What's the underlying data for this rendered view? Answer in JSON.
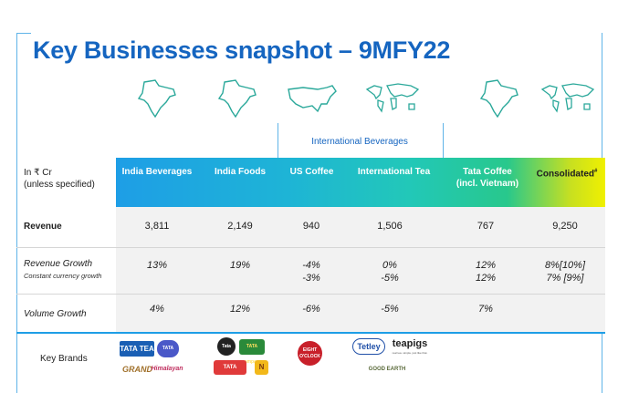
{
  "title": "Key Businesses snapshot – 9MFY22",
  "international_label": "International  Beverages",
  "units": {
    "line1": "In ₹ Cr",
    "line2": "(unless specified)"
  },
  "columns": [
    {
      "label": "India Beverages"
    },
    {
      "label": "India Foods"
    },
    {
      "label": "US Coffee"
    },
    {
      "label": "International Tea"
    },
    {
      "label": "Tata Coffee (incl. Vietnam)",
      "line1": "Tata Coffee",
      "line2": "(incl. Vietnam)"
    },
    {
      "label": "Consolidated",
      "mark": "#"
    }
  ],
  "rows": {
    "revenue": {
      "label": "Revenue",
      "values": [
        "3,811",
        "2,149",
        "940",
        "1,506",
        "767",
        "9,250"
      ]
    },
    "revenue_growth": {
      "label": "Revenue Growth",
      "sublabel": "Constant currency growth",
      "values": [
        "13%",
        "19%",
        "-4%",
        "0%",
        "12%",
        "8%[10%]"
      ],
      "values2": [
        "",
        "",
        "-3%",
        "-5%",
        "12%",
        "7% [9%]"
      ]
    },
    "volume_growth": {
      "label": "Volume Growth",
      "values": [
        "4%",
        "12%",
        "-6%",
        "-5%",
        "7%",
        ""
      ]
    }
  },
  "brands": {
    "label": "Key Brands",
    "logos": {
      "tata_tea": "TATA TEA",
      "tata_gluco": "TATA GLUCO+",
      "grand": "GRAND",
      "himalayan": "Himalayan",
      "tata_salt": "Tata Salt",
      "tata_sampann": "TATA sampann",
      "tata_soulfull": "TATA SOULFULL",
      "nourish": "N",
      "eight_oclock": "EIGHT O'CLOCK",
      "tetley": "Tetley",
      "teapigs": "teapigs",
      "teapigs_tagline": "real tea. simple. just like that.",
      "good_earth": "GOOD EARTH"
    }
  },
  "colors": {
    "title": "#1565c0",
    "accent": "#1e9ee6",
    "consolidated_end": "#f0f000"
  }
}
